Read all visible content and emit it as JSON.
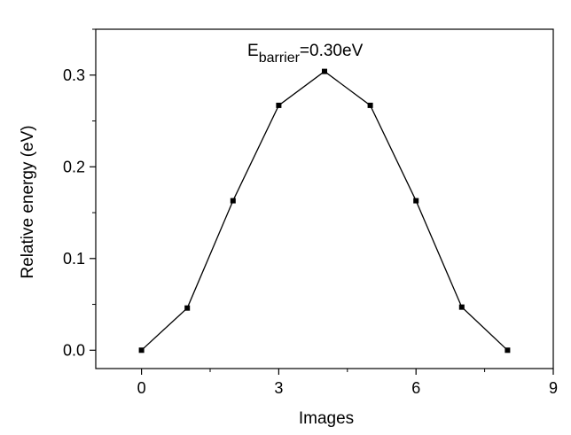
{
  "chart_data": {
    "type": "line",
    "title": "",
    "xlabel": "Images",
    "ylabel": "Relative energy (eV)",
    "xlim": [
      -1,
      9
    ],
    "ylim": [
      -0.02,
      0.35
    ],
    "x_ticks": [
      0,
      3,
      6,
      9
    ],
    "x_tick_labels": [
      "0",
      "3",
      "6",
      "9"
    ],
    "y_ticks": [
      0.0,
      0.1,
      0.2,
      0.3
    ],
    "y_tick_labels": [
      "0.0",
      "0.1",
      "0.2",
      "0.3"
    ],
    "grid": false,
    "series": [
      {
        "x": [
          0,
          1,
          2,
          3,
          4,
          5,
          6,
          7,
          8
        ],
        "y": [
          0.0,
          0.046,
          0.163,
          0.267,
          0.304,
          0.267,
          0.163,
          0.047,
          0.0
        ],
        "color": "#000000",
        "marker": "square"
      }
    ],
    "annotation": {
      "base": "E",
      "subscript": "barrier",
      "text": "=0.30eV"
    }
  }
}
